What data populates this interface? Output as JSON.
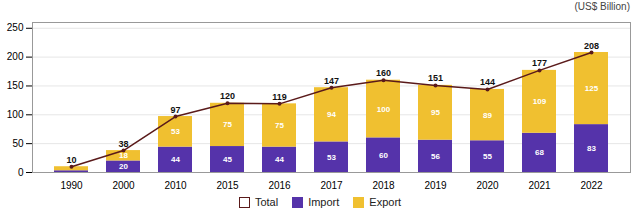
{
  "chart_data": {
    "type": "bar",
    "stacked": true,
    "categories": [
      "1990",
      "2000",
      "2010",
      "2015",
      "2016",
      "2017",
      "2018",
      "2019",
      "2020",
      "2021",
      "2022"
    ],
    "series": [
      {
        "name": "Total",
        "type": "line",
        "color": "#5a1a1a",
        "marker": "circle",
        "data_labels": true,
        "values": [
          10,
          38,
          97,
          120,
          119,
          147,
          160,
          151,
          144,
          177,
          208
        ]
      },
      {
        "name": "Import",
        "type": "bar",
        "color": "#5533aa",
        "data_labels": true,
        "values": [
          3,
          20,
          44,
          45,
          44,
          53,
          60,
          56,
          55,
          68,
          83
        ],
        "value_labels": [
          null,
          "20",
          "44",
          "45",
          "44",
          "53",
          "60",
          "56",
          "55",
          "68",
          "83"
        ]
      },
      {
        "name": "Export",
        "type": "bar",
        "color": "#f0c030",
        "data_labels": true,
        "values": [
          7,
          18,
          53,
          75,
          75,
          94,
          100,
          95,
          89,
          109,
          125
        ],
        "value_labels": [
          null,
          "18",
          "53",
          "75",
          "75",
          "94",
          "100",
          "95",
          "89",
          "109",
          "125"
        ]
      }
    ],
    "ylim": [
      0,
      260
    ],
    "yticks": [
      0,
      50,
      100,
      150,
      200,
      250
    ],
    "grid": true,
    "legend": "bottom",
    "annotations": [
      "(US$ Billion)"
    ]
  }
}
